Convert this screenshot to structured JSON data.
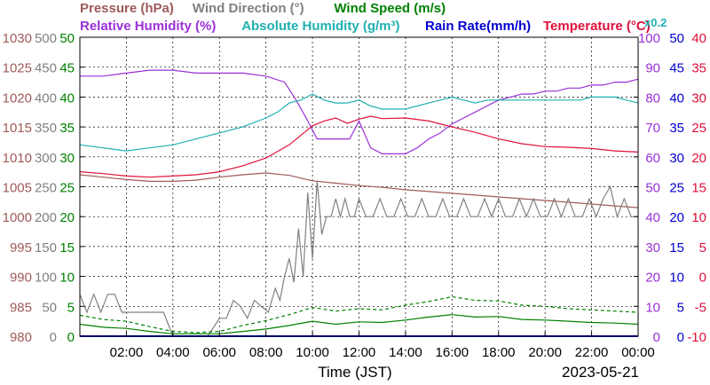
{
  "chart_data": {
    "type": "line",
    "xlabel": "Time (JST)",
    "date_label": "2023-05-21",
    "x_ticks": [
      "02:00",
      "04:00",
      "06:00",
      "08:00",
      "10:00",
      "12:00",
      "14:00",
      "16:00",
      "18:00",
      "20:00",
      "22:00",
      "00:00"
    ],
    "x_range_hours": [
      0,
      24
    ],
    "grid": true,
    "colors": {
      "pressure": "#a05a5a",
      "wind_dir": "#808080",
      "wind_speed": "#008000",
      "humidity": "#9a30d8",
      "abs_humidity": "#20b0b0",
      "rain_rate": "#0000d0",
      "temperature": "#e0103a"
    },
    "legend": {
      "row1": [
        {
          "key": "pressure",
          "label": "Pressure (hPa)"
        },
        {
          "key": "wind_dir",
          "label": "Wind Direction (°)"
        },
        {
          "key": "wind_speed",
          "label": "Wind Speed (m/s)"
        }
      ],
      "row2": [
        {
          "key": "humidity",
          "label": "Relative Humidity (%)"
        },
        {
          "key": "abs_humidity",
          "label": "Absolute Humidity (g/m³)"
        },
        {
          "key": "rain_rate",
          "label": "Rain Rate(mm/h)"
        },
        {
          "key": "temperature",
          "label": "Temperature (°C)"
        }
      ],
      "abs_multiplier": "x0.2"
    },
    "axes": {
      "pressure": {
        "ylim": [
          980,
          1030
        ],
        "ticks": [
          "1030",
          "1025",
          "1020",
          "1015",
          "1010",
          "1005",
          "1000",
          "995",
          "990",
          "985",
          "980"
        ]
      },
      "wind_dir": {
        "ylim": [
          0,
          500
        ],
        "ticks": [
          "500",
          "450",
          "400",
          "350",
          "300",
          "250",
          "200",
          "150",
          "100",
          "50",
          "0"
        ]
      },
      "wind_speed": {
        "ylim": [
          0,
          50
        ],
        "ticks": [
          "50",
          "45",
          "40",
          "35",
          "30",
          "25",
          "20",
          "15",
          "10",
          "5",
          "0"
        ]
      },
      "humidity": {
        "ylim": [
          0,
          100
        ],
        "ticks": [
          "100",
          "90",
          "80",
          "70",
          "60",
          "50",
          "40",
          "30",
          "20",
          "10",
          "0"
        ]
      },
      "rain_rate": {
        "ylim": [
          0,
          50
        ],
        "ticks": [
          "50",
          "45",
          "40",
          "35",
          "30",
          "25",
          "20",
          "15",
          "10",
          "5",
          "0"
        ]
      },
      "temperature": {
        "ylim": [
          -10,
          40
        ],
        "ticks": [
          "40",
          "35",
          "30",
          "25",
          "20",
          "15",
          "10",
          "5",
          "0",
          "-5",
          "-10"
        ]
      }
    },
    "series": [
      {
        "name": "Pressure (hPa)",
        "key": "pressure",
        "axis": "pressure",
        "x": [
          0,
          1,
          2,
          3,
          4,
          5,
          6,
          7,
          8,
          9,
          10,
          11,
          12,
          13,
          14,
          15,
          16,
          17,
          18,
          19,
          20,
          21,
          22,
          23,
          24
        ],
        "y": [
          1007.0,
          1006.6,
          1006.2,
          1005.9,
          1005.9,
          1006.1,
          1006.6,
          1007.0,
          1007.3,
          1006.9,
          1006.0,
          1005.6,
          1005.2,
          1004.9,
          1004.5,
          1004.2,
          1003.9,
          1003.6,
          1003.3,
          1003.0,
          1002.7,
          1002.4,
          1002.1,
          1001.8,
          1001.5
        ]
      },
      {
        "name": "Wind Direction (°)",
        "key": "wind_dir",
        "axis": "wind_dir",
        "x": [
          0,
          0.3,
          0.6,
          0.9,
          1.2,
          1.5,
          1.8,
          2.1,
          2.4,
          2.7,
          3.0,
          3.3,
          3.6,
          4.0,
          4.5,
          5.0,
          5.5,
          6.0,
          6.3,
          6.6,
          6.9,
          7.2,
          7.5,
          7.8,
          8.1,
          8.4,
          8.6,
          8.8,
          9.0,
          9.2,
          9.4,
          9.6,
          9.8,
          10.0,
          10.2,
          10.4,
          10.6,
          10.8,
          11.0,
          11.2,
          11.4,
          11.6,
          11.8,
          12.0,
          12.3,
          12.6,
          12.9,
          13.2,
          13.5,
          13.8,
          14.1,
          14.4,
          14.7,
          15.0,
          15.3,
          15.6,
          15.9,
          16.2,
          16.5,
          16.8,
          17.1,
          17.4,
          17.7,
          18.0,
          18.3,
          18.6,
          18.9,
          19.2,
          19.5,
          19.8,
          20.1,
          20.4,
          20.7,
          21.0,
          21.3,
          21.6,
          21.9,
          22.2,
          22.5,
          22.8,
          23.1,
          23.4,
          23.7,
          24.0
        ],
        "y": [
          70,
          40,
          70,
          40,
          70,
          70,
          40,
          40,
          40,
          40,
          40,
          40,
          40,
          0,
          0,
          0,
          0,
          30,
          30,
          60,
          50,
          30,
          60,
          50,
          40,
          80,
          60,
          100,
          130,
          90,
          180,
          100,
          240,
          130,
          260,
          170,
          200,
          200,
          230,
          200,
          230,
          200,
          200,
          230,
          200,
          200,
          230,
          200,
          200,
          230,
          200,
          200,
          230,
          200,
          200,
          230,
          200,
          200,
          230,
          200,
          200,
          230,
          200,
          230,
          200,
          200,
          230,
          200,
          230,
          200,
          200,
          230,
          200,
          230,
          200,
          200,
          230,
          200,
          230,
          250,
          200,
          230,
          200,
          200
        ]
      },
      {
        "name": "Wind Speed (m/s)",
        "key": "wind_speed",
        "axis": "wind_speed",
        "x": [
          0,
          1,
          2,
          3,
          4,
          5,
          6,
          7,
          8,
          9,
          10,
          11,
          12,
          13,
          14,
          15,
          16,
          17,
          18,
          19,
          20,
          21,
          22,
          23,
          24
        ],
        "y": [
          2.0,
          1.5,
          1.3,
          0.8,
          0.4,
          0.4,
          0.4,
          0.8,
          1.2,
          1.8,
          2.5,
          2.0,
          2.4,
          2.3,
          2.7,
          3.2,
          3.6,
          3.2,
          3.3,
          2.8,
          2.7,
          2.5,
          2.3,
          2.2,
          2.0
        ]
      },
      {
        "name": "Wind Speed gust (m/s)",
        "key": "wind_speed",
        "axis": "wind_speed",
        "dashed": true,
        "x": [
          0,
          1,
          2,
          3,
          4,
          5,
          6,
          7,
          8,
          9,
          10,
          11,
          12,
          13,
          14,
          15,
          16,
          17,
          18,
          19,
          20,
          21,
          22,
          23,
          24
        ],
        "y": [
          3.5,
          2.8,
          2.5,
          1.6,
          0.8,
          0.6,
          0.8,
          1.8,
          2.6,
          3.6,
          4.8,
          4.2,
          4.6,
          4.4,
          5.2,
          5.8,
          6.6,
          6.0,
          5.9,
          5.2,
          5.0,
          4.6,
          4.4,
          4.2,
          4.0
        ]
      },
      {
        "name": "Relative Humidity (%)",
        "key": "humidity",
        "axis": "humidity",
        "x": [
          0,
          1,
          2,
          3,
          4,
          5,
          6,
          7,
          8,
          8.8,
          9.3,
          9.8,
          10.2,
          10.7,
          11.2,
          11.6,
          12.0,
          12.5,
          13.0,
          13.5,
          14.0,
          14.5,
          15.0,
          15.5,
          16.0,
          16.5,
          17.0,
          17.5,
          18.0,
          18.5,
          19.0,
          19.5,
          20.0,
          20.5,
          21.0,
          21.5,
          22.0,
          22.5,
          23.0,
          23.5,
          24.0
        ],
        "y": [
          87,
          87,
          88,
          89,
          89,
          88,
          88,
          88,
          87,
          85,
          79,
          72,
          66,
          66,
          66,
          66,
          72,
          63,
          61,
          61,
          61,
          63,
          66,
          68,
          71,
          73,
          75,
          77,
          79,
          80,
          81,
          81,
          82,
          82,
          83,
          83,
          84,
          84,
          85,
          85,
          86
        ]
      },
      {
        "name": "Absolute Humidity (g/m³)",
        "key": "abs_humidity",
        "axis": "humidity",
        "x": [
          0,
          1,
          2,
          3,
          4,
          5,
          6,
          7,
          8,
          8.5,
          9,
          9.5,
          10,
          10.5,
          11,
          11.5,
          12,
          12.5,
          13,
          13.5,
          14,
          14.5,
          15,
          15.5,
          16,
          16.5,
          17,
          17.5,
          18,
          18.5,
          19,
          19.5,
          20,
          20.5,
          21,
          21.5,
          22,
          22.5,
          23,
          23.5,
          24
        ],
        "y": [
          64,
          63,
          62,
          63,
          64,
          66,
          68,
          70,
          73,
          75,
          78,
          79,
          81,
          79,
          78,
          78,
          79,
          77,
          76,
          76,
          76,
          77,
          78,
          79,
          80,
          79,
          78,
          79,
          79,
          79,
          79,
          79,
          79,
          79,
          79,
          79,
          80,
          80,
          80,
          79,
          78
        ]
      },
      {
        "name": "Rain Rate(mm/h)",
        "key": "rain_rate",
        "axis": "rain_rate",
        "x": [
          0,
          24
        ],
        "y": [
          0,
          0
        ]
      },
      {
        "name": "Temperature (°C)",
        "key": "temperature",
        "axis": "temperature",
        "x": [
          0,
          1,
          2,
          3,
          4,
          5,
          6,
          7,
          8,
          9,
          10,
          10.5,
          11,
          11.5,
          12,
          12.5,
          13,
          14,
          15,
          16,
          17,
          18,
          19,
          20,
          21,
          22,
          23,
          24
        ],
        "y": [
          17.5,
          17.2,
          16.8,
          16.6,
          16.8,
          17.0,
          17.5,
          18.5,
          19.8,
          22.0,
          25.2,
          26.0,
          26.5,
          25.6,
          26.3,
          26.8,
          26.4,
          26.5,
          26.0,
          25.0,
          24.1,
          23.0,
          22.2,
          21.7,
          21.6,
          21.4,
          21.0,
          20.8
        ]
      }
    ]
  }
}
